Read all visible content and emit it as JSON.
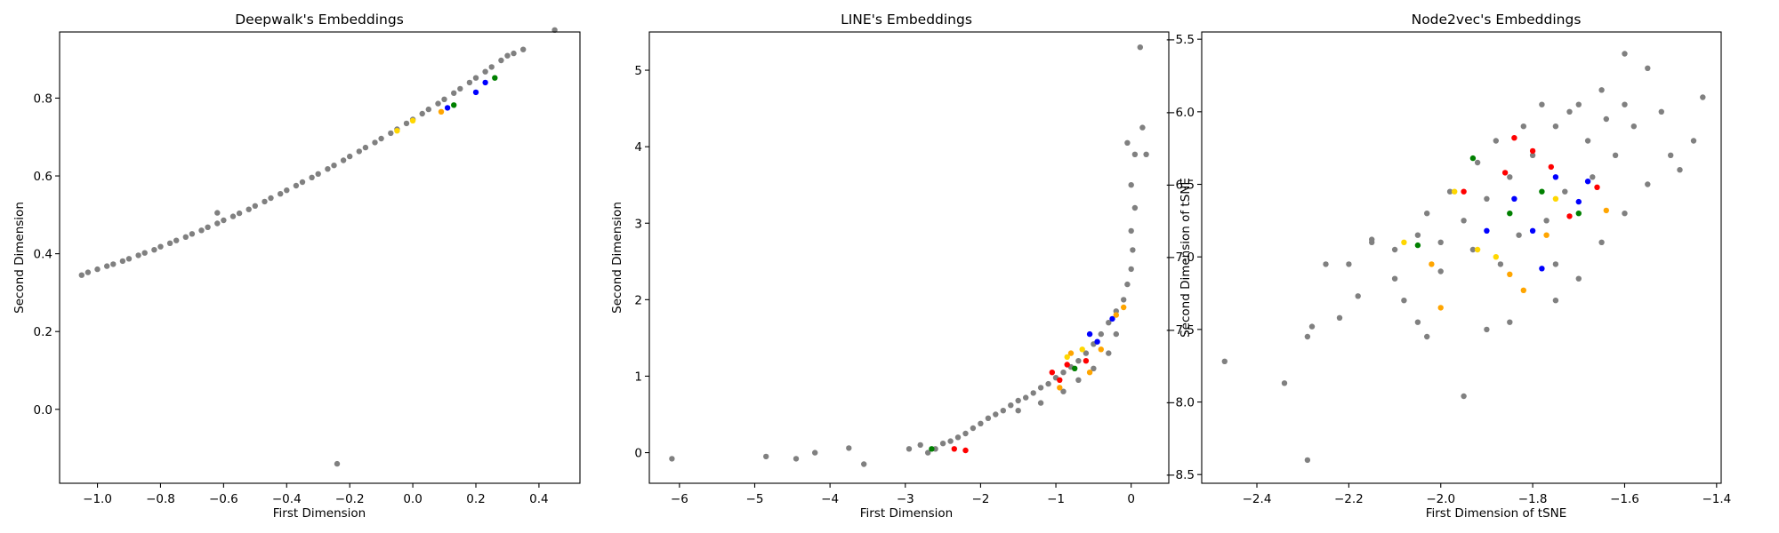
{
  "figure": {
    "background": "#ffffff"
  },
  "colors": {
    "gray": "#808080",
    "red": "#ff0000",
    "blue": "#0000ff",
    "green": "#008000",
    "yellow": "#ffd700",
    "orange": "#ffa500"
  },
  "chart_data": [
    {
      "type": "scatter",
      "title": "Deepwalk's Embeddings",
      "xlabel": "First Dimension",
      "ylabel": "Second Dimension",
      "xlim": [
        -1.12,
        0.53
      ],
      "ylim": [
        -0.19,
        0.97
      ],
      "xticks": [
        -1.0,
        -0.8,
        -0.6,
        -0.4,
        -0.2,
        0.0,
        0.2,
        0.4
      ],
      "xtick_labels": [
        "−1.0",
        "−0.8",
        "−0.6",
        "−0.4",
        "−0.2",
        "0.0",
        "0.2",
        "0.4"
      ],
      "yticks": [
        0.0,
        0.2,
        0.4,
        0.6,
        0.8
      ],
      "ytick_labels": [
        "0.0",
        "0.2",
        "0.4",
        "0.6",
        "0.8"
      ],
      "grid": false,
      "series": [
        {
          "color": "gray",
          "points": [
            [
              -1.05,
              0.345
            ],
            [
              -1.03,
              0.352
            ],
            [
              -1.0,
              0.36
            ],
            [
              -0.97,
              0.368
            ],
            [
              -0.95,
              0.373
            ],
            [
              -0.92,
              0.381
            ],
            [
              -0.9,
              0.387
            ],
            [
              -0.87,
              0.396
            ],
            [
              -0.85,
              0.402
            ],
            [
              -0.82,
              0.41
            ],
            [
              -0.8,
              0.418
            ],
            [
              -0.77,
              0.427
            ],
            [
              -0.75,
              0.434
            ],
            [
              -0.72,
              0.443
            ],
            [
              -0.7,
              0.451
            ],
            [
              -0.67,
              0.46
            ],
            [
              -0.65,
              0.468
            ],
            [
              -0.62,
              0.478
            ],
            [
              -0.6,
              0.486
            ],
            [
              -0.57,
              0.496
            ],
            [
              -0.55,
              0.504
            ],
            [
              -0.52,
              0.514
            ],
            [
              -0.5,
              0.523
            ],
            [
              -0.47,
              0.534
            ],
            [
              -0.45,
              0.543
            ],
            [
              -0.42,
              0.554
            ],
            [
              -0.4,
              0.563
            ],
            [
              -0.37,
              0.575
            ],
            [
              -0.35,
              0.584
            ],
            [
              -0.32,
              0.596
            ],
            [
              -0.3,
              0.605
            ],
            [
              -0.27,
              0.618
            ],
            [
              -0.25,
              0.627
            ],
            [
              -0.22,
              0.64
            ],
            [
              -0.2,
              0.65
            ],
            [
              -0.17,
              0.663
            ],
            [
              -0.15,
              0.673
            ],
            [
              -0.12,
              0.686
            ],
            [
              -0.1,
              0.696
            ],
            [
              -0.07,
              0.71
            ],
            [
              -0.05,
              0.72
            ],
            [
              -0.02,
              0.735
            ],
            [
              0.0,
              0.745
            ],
            [
              0.03,
              0.76
            ],
            [
              0.05,
              0.771
            ],
            [
              0.08,
              0.786
            ],
            [
              0.1,
              0.797
            ],
            [
              0.13,
              0.813
            ],
            [
              0.15,
              0.824
            ],
            [
              0.18,
              0.84
            ],
            [
              0.2,
              0.852
            ],
            [
              0.23,
              0.868
            ],
            [
              0.25,
              0.88
            ],
            [
              0.28,
              0.897
            ],
            [
              0.3,
              0.909
            ],
            [
              0.32,
              0.915
            ],
            [
              0.35,
              0.925
            ],
            [
              0.45,
              0.975
            ],
            [
              -0.62,
              0.505
            ],
            [
              -0.24,
              -0.14
            ]
          ]
        },
        {
          "color": "blue",
          "points": [
            [
              0.23,
              0.84
            ],
            [
              0.2,
              0.815
            ],
            [
              0.11,
              0.775
            ]
          ]
        },
        {
          "color": "green",
          "points": [
            [
              0.26,
              0.852
            ],
            [
              0.13,
              0.782
            ]
          ]
        },
        {
          "color": "yellow",
          "points": [
            [
              -0.05,
              0.716
            ],
            [
              0.0,
              0.742
            ]
          ]
        },
        {
          "color": "orange",
          "points": [
            [
              0.09,
              0.765
            ]
          ]
        }
      ]
    },
    {
      "type": "scatter",
      "title": "LINE's Embeddings",
      "xlabel": "First Dimension",
      "ylabel": "Second Dimension",
      "xlim": [
        -6.4,
        0.5
      ],
      "ylim": [
        -0.4,
        5.5
      ],
      "xticks": [
        -6,
        -5,
        -4,
        -3,
        -2,
        -1,
        0
      ],
      "xtick_labels": [
        "−6",
        "−5",
        "−4",
        "−3",
        "−2",
        "−1",
        "0"
      ],
      "yticks": [
        0,
        1,
        2,
        3,
        4,
        5
      ],
      "ytick_labels": [
        "0",
        "1",
        "2",
        "3",
        "4",
        "5"
      ],
      "grid": false,
      "series": [
        {
          "color": "gray",
          "points": [
            [
              -6.1,
              -0.08
            ],
            [
              -4.85,
              -0.05
            ],
            [
              -4.45,
              -0.08
            ],
            [
              -4.2,
              0.0
            ],
            [
              -3.75,
              0.06
            ],
            [
              -3.55,
              -0.15
            ],
            [
              -2.95,
              0.05
            ],
            [
              -2.8,
              0.1
            ],
            [
              -2.7,
              0.0
            ],
            [
              -2.6,
              0.05
            ],
            [
              -2.5,
              0.12
            ],
            [
              -2.4,
              0.15
            ],
            [
              -2.3,
              0.2
            ],
            [
              -2.2,
              0.25
            ],
            [
              -2.1,
              0.32
            ],
            [
              -2.0,
              0.38
            ],
            [
              -1.9,
              0.45
            ],
            [
              -1.8,
              0.5
            ],
            [
              -1.7,
              0.55
            ],
            [
              -1.6,
              0.62
            ],
            [
              -1.5,
              0.68
            ],
            [
              -1.4,
              0.72
            ],
            [
              -1.3,
              0.78
            ],
            [
              -1.2,
              0.85
            ],
            [
              -1.1,
              0.9
            ],
            [
              -1.0,
              0.98
            ],
            [
              -0.9,
              1.05
            ],
            [
              -0.8,
              1.12
            ],
            [
              -0.7,
              1.2
            ],
            [
              -0.6,
              1.3
            ],
            [
              -0.5,
              1.42
            ],
            [
              -0.4,
              1.55
            ],
            [
              -0.3,
              1.7
            ],
            [
              -0.2,
              1.85
            ],
            [
              -0.1,
              2.0
            ],
            [
              -0.05,
              2.2
            ],
            [
              0.0,
              2.4
            ],
            [
              0.02,
              2.65
            ],
            [
              0.0,
              2.9
            ],
            [
              0.05,
              3.2
            ],
            [
              0.0,
              3.5
            ],
            [
              -0.05,
              4.05
            ],
            [
              0.05,
              3.9
            ],
            [
              0.15,
              4.25
            ],
            [
              0.2,
              3.9
            ],
            [
              0.12,
              5.3
            ],
            [
              -1.5,
              0.55
            ],
            [
              -1.2,
              0.65
            ],
            [
              -0.9,
              0.8
            ],
            [
              -0.7,
              0.95
            ],
            [
              -0.5,
              1.1
            ],
            [
              -0.3,
              1.3
            ],
            [
              -0.2,
              1.55
            ]
          ]
        },
        {
          "color": "red",
          "points": [
            [
              -2.35,
              0.05
            ],
            [
              -2.2,
              0.03
            ],
            [
              -1.05,
              1.05
            ],
            [
              -0.95,
              0.95
            ],
            [
              -0.85,
              1.15
            ],
            [
              -0.6,
              1.2
            ]
          ]
        },
        {
          "color": "green",
          "points": [
            [
              -2.65,
              0.05
            ],
            [
              -0.75,
              1.1
            ]
          ]
        },
        {
          "color": "blue",
          "points": [
            [
              -0.25,
              1.75
            ],
            [
              -0.55,
              1.55
            ],
            [
              -0.45,
              1.45
            ]
          ]
        },
        {
          "color": "orange",
          "points": [
            [
              -0.95,
              0.85
            ],
            [
              -0.55,
              1.05
            ],
            [
              -0.8,
              1.3
            ],
            [
              -0.1,
              1.9
            ],
            [
              -0.4,
              1.35
            ],
            [
              -0.2,
              1.8
            ]
          ]
        },
        {
          "color": "yellow",
          "points": [
            [
              -0.85,
              1.25
            ],
            [
              -0.65,
              1.35
            ]
          ]
        }
      ]
    },
    {
      "type": "scatter",
      "title": "Node2vec's Embeddings",
      "xlabel": "First Dimension of tSNE",
      "ylabel": "Second Dimension of tSNE",
      "xlim": [
        -2.52,
        -1.39
      ],
      "ylim": [
        -8.56,
        -5.45
      ],
      "xticks": [
        -2.4,
        -2.2,
        -2.0,
        -1.8,
        -1.6,
        -1.4
      ],
      "xtick_labels": [
        "−2.4",
        "−2.2",
        "−2.0",
        "−1.8",
        "−1.6",
        "−1.4"
      ],
      "yticks": [
        -8.5,
        -8.0,
        -7.5,
        -7.0,
        -6.5,
        -6.0,
        -5.5
      ],
      "ytick_labels": [
        "−8.5",
        "−8.0",
        "−7.5",
        "−7.0",
        "−6.5",
        "−6.0",
        "−5.5"
      ],
      "grid": false,
      "series": [
        {
          "color": "gray",
          "points": [
            [
              -2.47,
              -7.72
            ],
            [
              -2.34,
              -7.87
            ],
            [
              -2.29,
              -8.4
            ],
            [
              -2.29,
              -7.55
            ],
            [
              -2.28,
              -7.48
            ],
            [
              -2.25,
              -7.05
            ],
            [
              -2.22,
              -7.42
            ],
            [
              -2.2,
              -7.05
            ],
            [
              -2.18,
              -7.27
            ],
            [
              -2.15,
              -6.88
            ],
            [
              -2.1,
              -7.15
            ],
            [
              -2.08,
              -7.3
            ],
            [
              -2.05,
              -7.45
            ],
            [
              -2.03,
              -7.55
            ],
            [
              -2.0,
              -7.1
            ],
            [
              -1.95,
              -7.96
            ],
            [
              -1.9,
              -7.5
            ],
            [
              -1.85,
              -7.45
            ],
            [
              -1.75,
              -7.3
            ],
            [
              -1.7,
              -7.15
            ],
            [
              -1.75,
              -7.05
            ],
            [
              -1.65,
              -6.9
            ],
            [
              -1.6,
              -6.7
            ],
            [
              -1.55,
              -6.5
            ],
            [
              -1.5,
              -6.3
            ],
            [
              -1.45,
              -6.2
            ],
            [
              -1.48,
              -6.4
            ],
            [
              -1.43,
              -5.9
            ],
            [
              -1.55,
              -5.7
            ],
            [
              -1.6,
              -5.6
            ],
            [
              -1.65,
              -5.85
            ],
            [
              -1.7,
              -5.95
            ],
            [
              -1.75,
              -6.1
            ],
            [
              -1.8,
              -6.3
            ],
            [
              -1.85,
              -6.45
            ],
            [
              -1.9,
              -6.6
            ],
            [
              -1.95,
              -6.75
            ],
            [
              -2.0,
              -6.9
            ],
            [
              -2.05,
              -6.85
            ],
            [
              -2.1,
              -6.95
            ],
            [
              -2.15,
              -6.9
            ],
            [
              -1.92,
              -6.35
            ],
            [
              -1.88,
              -6.2
            ],
            [
              -1.82,
              -6.1
            ],
            [
              -1.78,
              -5.95
            ],
            [
              -1.72,
              -6.0
            ],
            [
              -1.68,
              -6.2
            ],
            [
              -1.62,
              -6.3
            ],
            [
              -1.58,
              -6.1
            ],
            [
              -1.52,
              -6.0
            ],
            [
              -1.98,
              -6.55
            ],
            [
              -2.03,
              -6.7
            ],
            [
              -1.93,
              -6.95
            ],
            [
              -1.87,
              -7.05
            ],
            [
              -1.83,
              -6.85
            ],
            [
              -1.77,
              -6.75
            ],
            [
              -1.73,
              -6.55
            ],
            [
              -1.67,
              -6.45
            ],
            [
              -1.64,
              -6.05
            ],
            [
              -1.6,
              -5.95
            ]
          ]
        },
        {
          "color": "red",
          "points": [
            [
              -1.86,
              -6.42
            ],
            [
              -1.8,
              -6.27
            ],
            [
              -1.95,
              -6.55
            ],
            [
              -1.72,
              -6.72
            ],
            [
              -1.66,
              -6.52
            ],
            [
              -1.84,
              -6.18
            ],
            [
              -1.76,
              -6.38
            ]
          ]
        },
        {
          "color": "blue",
          "points": [
            [
              -1.78,
              -7.08
            ],
            [
              -1.7,
              -6.62
            ],
            [
              -1.68,
              -6.48
            ],
            [
              -1.84,
              -6.6
            ],
            [
              -1.9,
              -6.82
            ],
            [
              -1.8,
              -6.82
            ],
            [
              -1.75,
              -6.45
            ]
          ]
        },
        {
          "color": "green",
          "points": [
            [
              -2.05,
              -6.92
            ],
            [
              -1.93,
              -6.32
            ],
            [
              -1.78,
              -6.55
            ],
            [
              -1.7,
              -6.7
            ],
            [
              -1.85,
              -6.7
            ]
          ]
        },
        {
          "color": "yellow",
          "points": [
            [
              -1.97,
              -6.55
            ],
            [
              -1.92,
              -6.95
            ],
            [
              -1.75,
              -6.6
            ],
            [
              -2.08,
              -6.9
            ],
            [
              -1.88,
              -7.0
            ]
          ]
        },
        {
          "color": "orange",
          "points": [
            [
              -2.0,
              -7.35
            ],
            [
              -1.82,
              -7.23
            ],
            [
              -1.85,
              -7.12
            ],
            [
              -1.64,
              -6.68
            ],
            [
              -2.02,
              -7.05
            ],
            [
              -1.77,
              -6.85
            ]
          ]
        }
      ]
    }
  ]
}
